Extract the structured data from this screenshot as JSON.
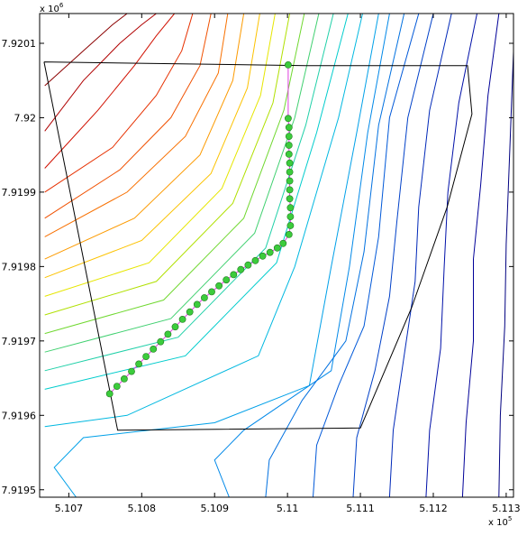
{
  "chart_data": {
    "type": "contour",
    "title": "",
    "xlabel": "",
    "ylabel": "",
    "x_multiplier": "x 10",
    "x_multiplier_exp": "5",
    "y_multiplier": "x 10",
    "y_multiplier_exp": "6",
    "xlim": [
      5.1066,
      5.1131
    ],
    "ylim": [
      7.91949,
      7.92014
    ],
    "xticks": [
      5.107,
      5.108,
      5.109,
      5.11,
      5.111,
      5.112,
      5.113
    ],
    "xtick_labels": [
      "5.107",
      "5.108",
      "5.109",
      "5.11",
      "5.111",
      "5.112",
      "5.113"
    ],
    "yticks": [
      7.9195,
      7.9196,
      7.9197,
      7.9198,
      7.9199,
      7.92,
      7.9201
    ],
    "ytick_labels": [
      "7.9195",
      "7.9196",
      "7.9197",
      "7.9198",
      "7.9199",
      "7.92",
      "7.9201"
    ],
    "grid": false,
    "legend": "none",
    "boundary_polygon": {
      "color": "#000000",
      "x": [
        5.10666,
        5.11025,
        5.11247,
        5.11253,
        5.11219,
        5.1117,
        5.111,
        5.10767,
        5.10666
      ],
      "y": [
        7.920075,
        7.92007,
        7.92007,
        7.920005,
        7.91988,
        7.919744,
        7.919583,
        7.91958,
        7.920075
      ]
    },
    "transect": {
      "line_color": "#e040e0",
      "marker_color": "#3ccc3c",
      "marker_edge": "#207a20",
      "x": [
        5.10756,
        5.10766,
        5.10776,
        5.10786,
        5.10796,
        5.10806,
        5.10816,
        5.10826,
        5.10836,
        5.10846,
        5.10856,
        5.10866,
        5.10876,
        5.10886,
        5.10896,
        5.10906,
        5.10916,
        5.10926,
        5.10936,
        5.10946,
        5.10956,
        5.10966,
        5.10976,
        5.10986,
        5.10994,
        5.11002,
        5.11004,
        5.11004,
        5.11004,
        5.11003,
        5.11003,
        5.11003,
        5.11003,
        5.11003,
        5.11002,
        5.11002,
        5.11002,
        5.11002,
        5.11001,
        5.11001
      ],
      "y": [
        7.919629,
        7.919639,
        7.919649,
        7.919659,
        7.919669,
        7.919679,
        7.919689,
        7.919699,
        7.919709,
        7.919719,
        7.919729,
        7.919739,
        7.919749,
        7.919758,
        7.919766,
        7.919774,
        7.919782,
        7.919789,
        7.919796,
        7.919802,
        7.919808,
        7.919814,
        7.919819,
        7.919825,
        7.919831,
        7.919843,
        7.919855,
        7.919867,
        7.919879,
        7.919891,
        7.919903,
        7.919915,
        7.919927,
        7.919939,
        7.919951,
        7.919963,
        7.919975,
        7.919987,
        7.919999,
        7.920071
      ]
    },
    "contour_levels": [
      {
        "color": "#8b0000",
        "x": [
          5.10667,
          5.1072,
          5.1076,
          5.1078,
          5.10795
        ],
        "y": [
          7.920043,
          7.92009,
          7.920125,
          7.92014,
          7.92014
        ]
      },
      {
        "color": "#b00000",
        "x": [
          5.10667,
          5.1072,
          5.1077,
          5.108,
          5.1082
        ],
        "y": [
          7.919982,
          7.92005,
          7.9201,
          7.920125,
          7.92014
        ]
      },
      {
        "color": "#d01000",
        "x": [
          5.10667,
          5.1074,
          5.1079,
          5.1082,
          5.10845
        ],
        "y": [
          7.919932,
          7.92001,
          7.92007,
          7.92011,
          7.92014
        ]
      },
      {
        "color": "#e63000",
        "x": [
          5.10667,
          5.1076,
          5.1082,
          5.10855,
          5.1087
        ],
        "y": [
          7.9199,
          7.91996,
          7.92003,
          7.92009,
          7.92014
        ]
      },
      {
        "color": "#f05000",
        "x": [
          5.10667,
          5.1077,
          5.1084,
          5.1088,
          5.10895
        ],
        "y": [
          7.919865,
          7.91993,
          7.92,
          7.92007,
          7.92014
        ]
      },
      {
        "color": "#f87000",
        "x": [
          5.10667,
          5.1078,
          5.1086,
          5.10905,
          5.10918
        ],
        "y": [
          7.91984,
          7.9199,
          7.919975,
          7.92006,
          7.92014
        ]
      },
      {
        "color": "#fc9a00",
        "x": [
          5.10667,
          5.1079,
          5.1088,
          5.10925,
          5.1094
        ],
        "y": [
          7.91981,
          7.919865,
          7.91995,
          7.92005,
          7.92014
        ]
      },
      {
        "color": "#fcc200",
        "x": [
          5.10667,
          5.108,
          5.10895,
          5.10945,
          5.10962
        ],
        "y": [
          7.919785,
          7.919835,
          7.919925,
          7.92004,
          7.92014
        ]
      },
      {
        "color": "#e6e600",
        "x": [
          5.10667,
          5.1081,
          5.1091,
          5.10963,
          5.10983
        ],
        "y": [
          7.91976,
          7.919805,
          7.919905,
          7.92003,
          7.92014
        ]
      },
      {
        "color": "#b0e000",
        "x": [
          5.10667,
          5.1082,
          5.10925,
          5.1098,
          5.11003
        ],
        "y": [
          7.919735,
          7.91978,
          7.919885,
          7.92002,
          7.92014
        ]
      },
      {
        "color": "#70d830",
        "x": [
          5.10667,
          5.1083,
          5.1094,
          5.10995,
          5.11023
        ],
        "y": [
          7.91971,
          7.919755,
          7.919865,
          7.92001,
          7.92014
        ]
      },
      {
        "color": "#40d070",
        "x": [
          5.10667,
          5.1084,
          5.10955,
          5.1101,
          5.11043
        ],
        "y": [
          7.919685,
          7.91973,
          7.919845,
          7.92,
          7.92014
        ]
      },
      {
        "color": "#20d0a8",
        "x": [
          5.10667,
          5.1085,
          5.1097,
          5.11025,
          5.11063
        ],
        "y": [
          7.91966,
          7.919705,
          7.919825,
          7.91999,
          7.92014
        ]
      },
      {
        "color": "#00cccc",
        "x": [
          5.10667,
          5.1086,
          5.10985,
          5.1104,
          5.11083
        ],
        "y": [
          7.919635,
          7.91968,
          7.919805,
          7.91998,
          7.92014
        ]
      },
      {
        "color": "#00b8e0",
        "x": [
          5.10667,
          5.1078,
          5.1096,
          5.1101,
          5.1104,
          5.1107,
          5.11103
        ],
        "y": [
          7.919585,
          7.9196,
          7.91968,
          7.9198,
          7.9199,
          7.92,
          7.92014
        ]
      },
      {
        "color": "#00a0e8",
        "x": [
          5.1071,
          5.1068,
          5.1072,
          5.109,
          5.1103,
          5.1106,
          5.11095,
          5.11125
        ],
        "y": [
          7.91949,
          7.91953,
          7.91957,
          7.91959,
          7.91964,
          7.9198,
          7.91998,
          7.92014
        ]
      },
      {
        "color": "#0088e8",
        "x": [
          5.1092,
          5.109,
          5.1094,
          5.1106,
          5.11085,
          5.1111,
          5.1114
        ],
        "y": [
          7.91949,
          7.91954,
          7.91958,
          7.91966,
          7.9198,
          7.91998,
          7.92014
        ]
      },
      {
        "color": "#0070e0",
        "x": [
          5.1097,
          5.10975,
          5.1102,
          5.1108,
          5.11105,
          5.11125,
          5.1116
        ],
        "y": [
          7.91949,
          7.91954,
          7.91962,
          7.9197,
          7.91982,
          7.91999,
          7.92014
        ]
      },
      {
        "color": "#0058d8",
        "x": [
          5.11035,
          5.1104,
          5.1107,
          5.11105,
          5.11125,
          5.1114,
          5.1118
        ],
        "y": [
          7.91949,
          7.91956,
          7.91964,
          7.91972,
          7.91984,
          7.92,
          7.92014
        ]
      },
      {
        "color": "#0040c8",
        "x": [
          5.1109,
          5.11095,
          5.1112,
          5.1114,
          5.1115,
          5.11165,
          5.112
        ],
        "y": [
          7.91949,
          7.91957,
          7.91966,
          7.91976,
          7.91986,
          7.92,
          7.92014
        ]
      },
      {
        "color": "#0028b8",
        "x": [
          5.1114,
          5.11145,
          5.1116,
          5.11175,
          5.1118,
          5.11195,
          5.11225
        ],
        "y": [
          7.91949,
          7.91958,
          7.91968,
          7.91978,
          7.91988,
          7.92001,
          7.92014
        ]
      },
      {
        "color": "#0010a8",
        "x": [
          5.1119,
          5.11195,
          5.1121,
          5.11215,
          5.1122,
          5.11235,
          5.1126
        ],
        "y": [
          7.91949,
          7.91958,
          7.91969,
          7.9198,
          7.9199,
          7.92002,
          7.92014
        ]
      },
      {
        "color": "#000098",
        "x": [
          5.1124,
          5.11245,
          5.11255,
          5.11255,
          5.11265,
          5.11275,
          5.1129
        ],
        "y": [
          7.91949,
          7.91959,
          7.9197,
          7.91981,
          7.91991,
          7.92003,
          7.92014
        ]
      },
      {
        "color": "#000080",
        "x": [
          5.1129,
          5.11292,
          5.11298,
          5.113,
          5.11305,
          5.11312
        ],
        "y": [
          7.91949,
          7.9196,
          7.91972,
          7.91983,
          7.91996,
          7.92014
        ]
      }
    ]
  }
}
